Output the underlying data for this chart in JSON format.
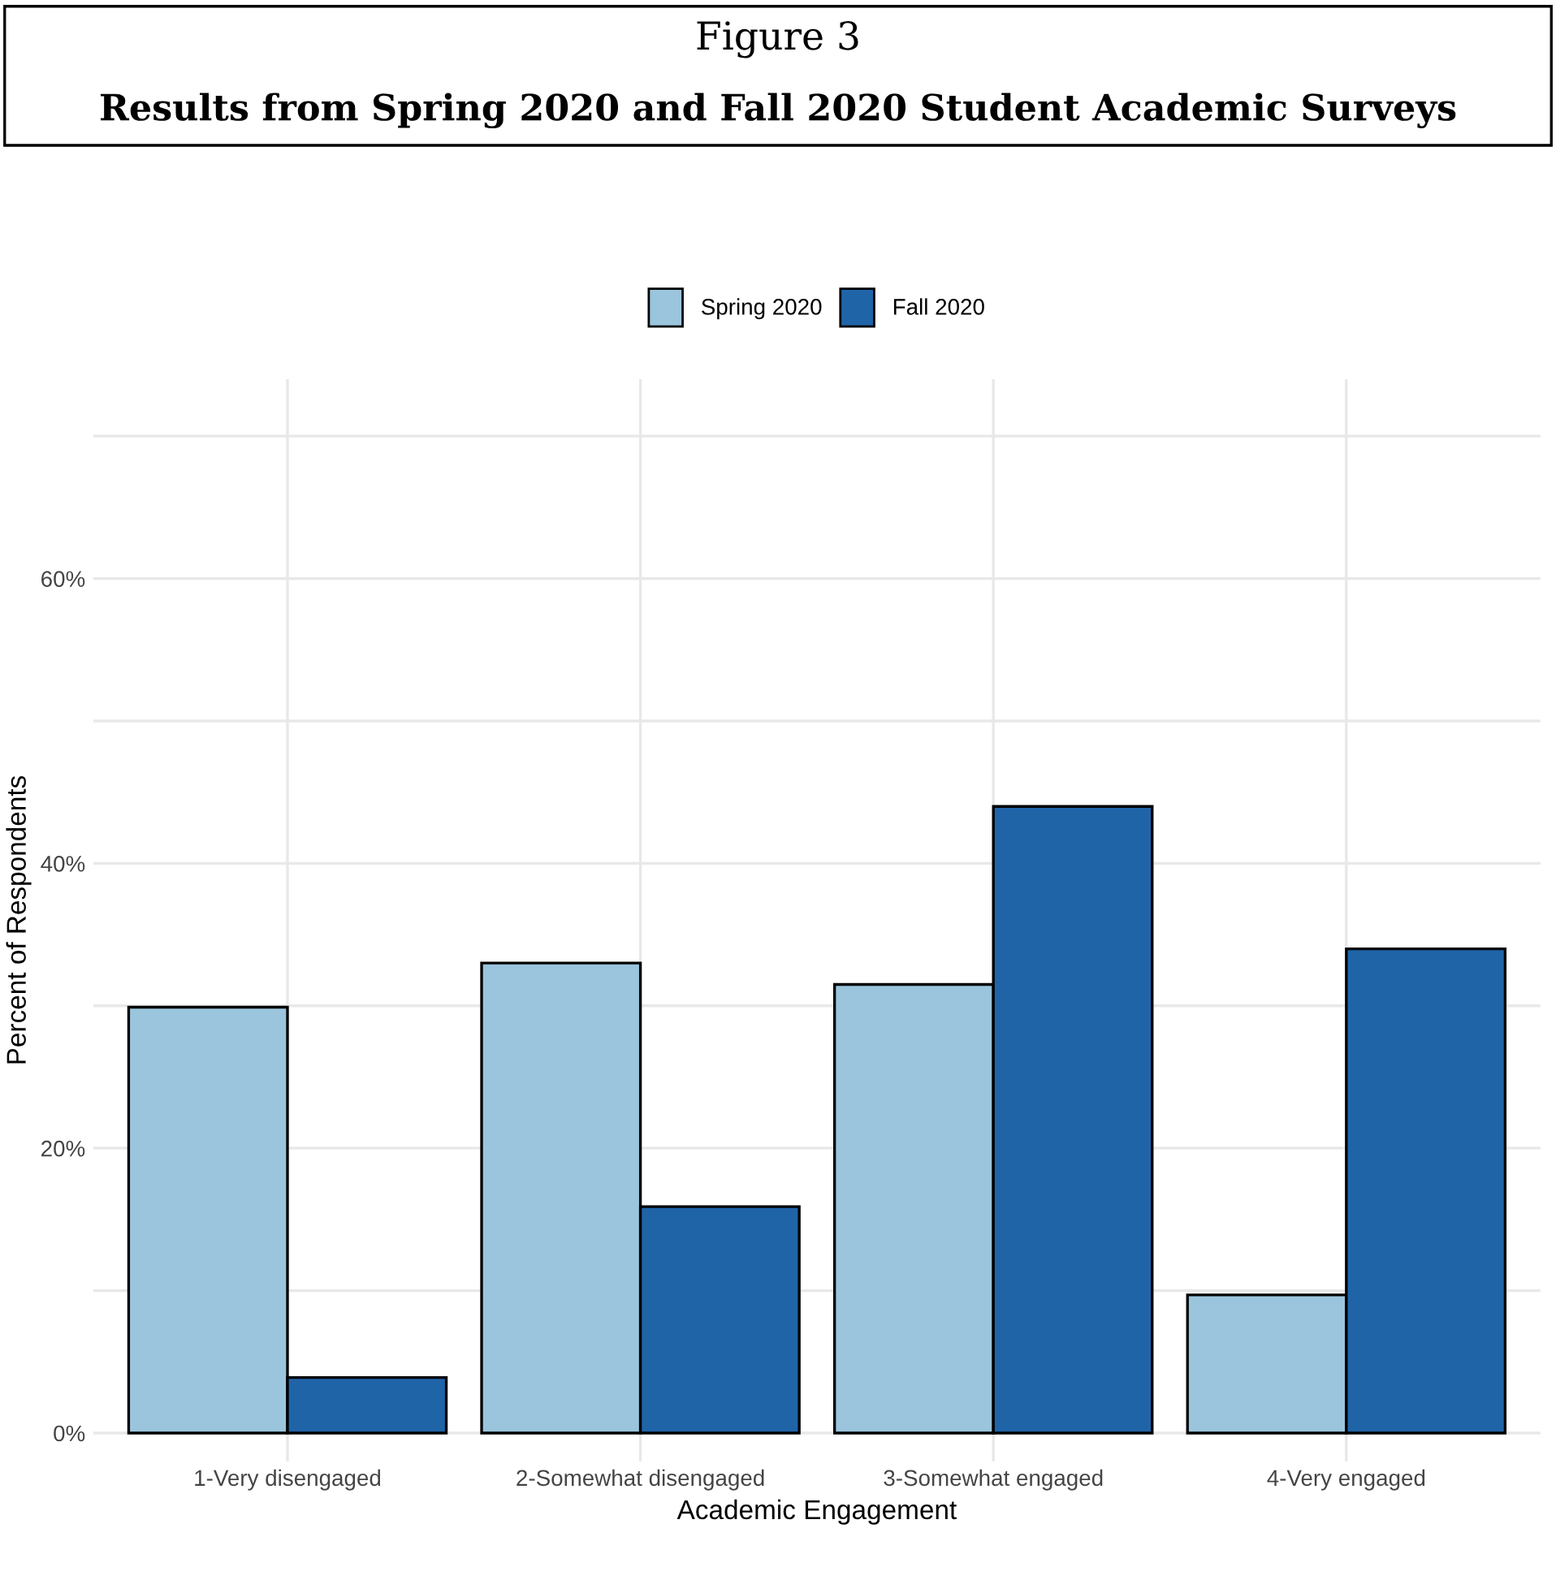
{
  "chart_data": {
    "type": "bar",
    "title": "Figure 3",
    "subtitle": "Results from Spring 2020 and Fall 2020 Student Academic Surveys",
    "xlabel": "Academic Engagement",
    "ylabel": "Percent of Respondents",
    "categories": [
      "1-Very disengaged",
      "2-Somewhat disengaged",
      "3-Somewhat engaged",
      "4-Very engaged"
    ],
    "series": [
      {
        "name": "Spring 2020",
        "color": "#9ac5dd",
        "values": [
          29.9,
          33.0,
          31.5,
          9.7
        ]
      },
      {
        "name": "Fall 2020",
        "color": "#2064a8",
        "values": [
          3.9,
          15.9,
          44.0,
          34.0
        ]
      }
    ],
    "ylim": [
      -2,
      74
    ],
    "yticks": [
      {
        "value": 0,
        "label": "0%"
      },
      {
        "value": 10,
        "label": null
      },
      {
        "value": 20,
        "label": "20%"
      },
      {
        "value": 30,
        "label": null
      },
      {
        "value": 40,
        "label": "40%"
      },
      {
        "value": 50,
        "label": null
      },
      {
        "value": 60,
        "label": "60%"
      },
      {
        "value": 70,
        "label": null
      }
    ],
    "grid": true,
    "legend": "top"
  }
}
